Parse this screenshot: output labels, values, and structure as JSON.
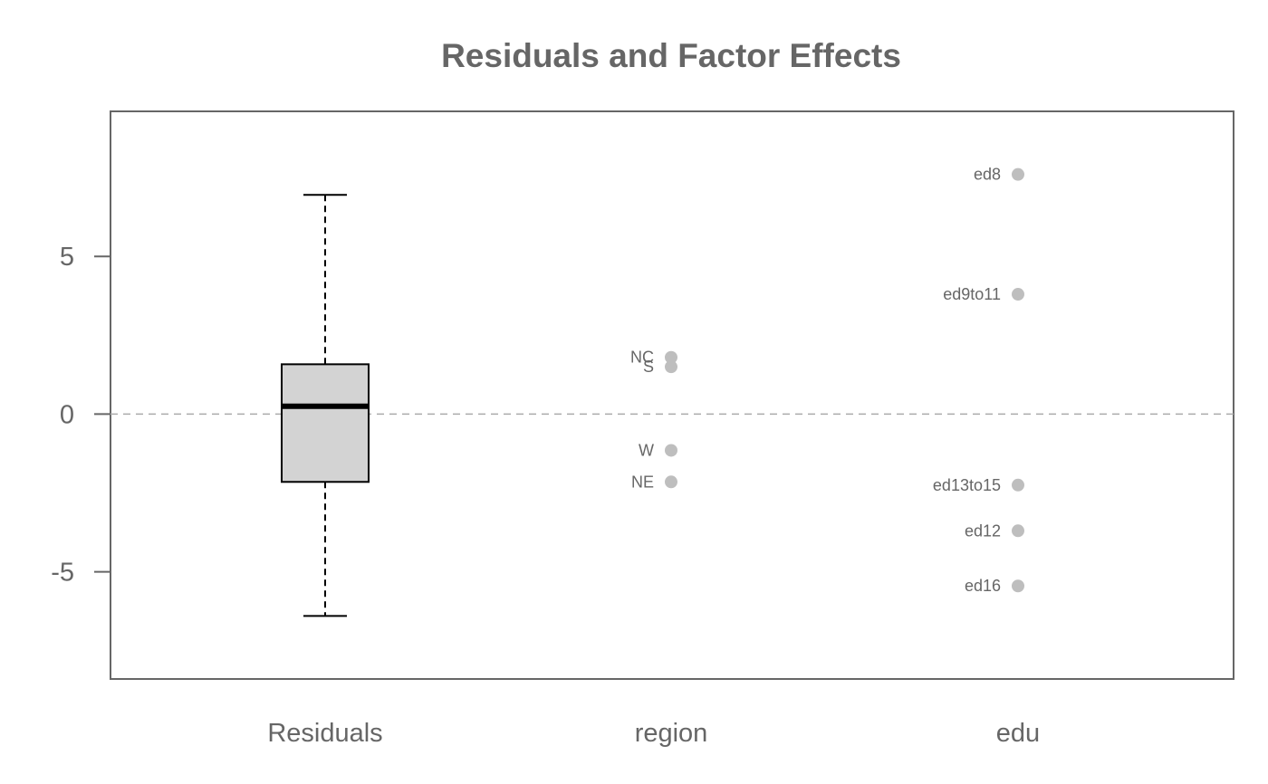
{
  "chart_data": {
    "type": "boxplot-dotplot",
    "title": "Residuals and Factor Effects",
    "ylim": [
      -8.4,
      9.6
    ],
    "y_ticks": [
      -5,
      0,
      5
    ],
    "y_tick_labels": [
      "-5",
      "0",
      "5"
    ],
    "reference_line": 0,
    "categories": [
      "Residuals",
      "region",
      "edu"
    ],
    "residuals_box": {
      "min": -6.4,
      "q1": -2.15,
      "median": 0.25,
      "q3": 1.58,
      "max": 6.95
    },
    "factors": [
      {
        "name": "region",
        "points": [
          {
            "label": "NC",
            "value": 1.8
          },
          {
            "label": "S",
            "value": 1.5
          },
          {
            "label": "W",
            "value": -1.15
          },
          {
            "label": "NE",
            "value": -2.15
          }
        ]
      },
      {
        "name": "edu",
        "points": [
          {
            "label": "ed8",
            "value": 7.6
          },
          {
            "label": "ed9to11",
            "value": 3.8
          },
          {
            "label": "ed13to15",
            "value": -2.25
          },
          {
            "label": "ed12",
            "value": -3.7
          },
          {
            "label": "ed16",
            "value": -5.45
          }
        ]
      }
    ],
    "colors": {
      "text": "#666666",
      "frame": "#666666",
      "box_fill": "#d3d3d3",
      "points": "#bebebe",
      "reference_line": "#aaaaaa"
    }
  }
}
